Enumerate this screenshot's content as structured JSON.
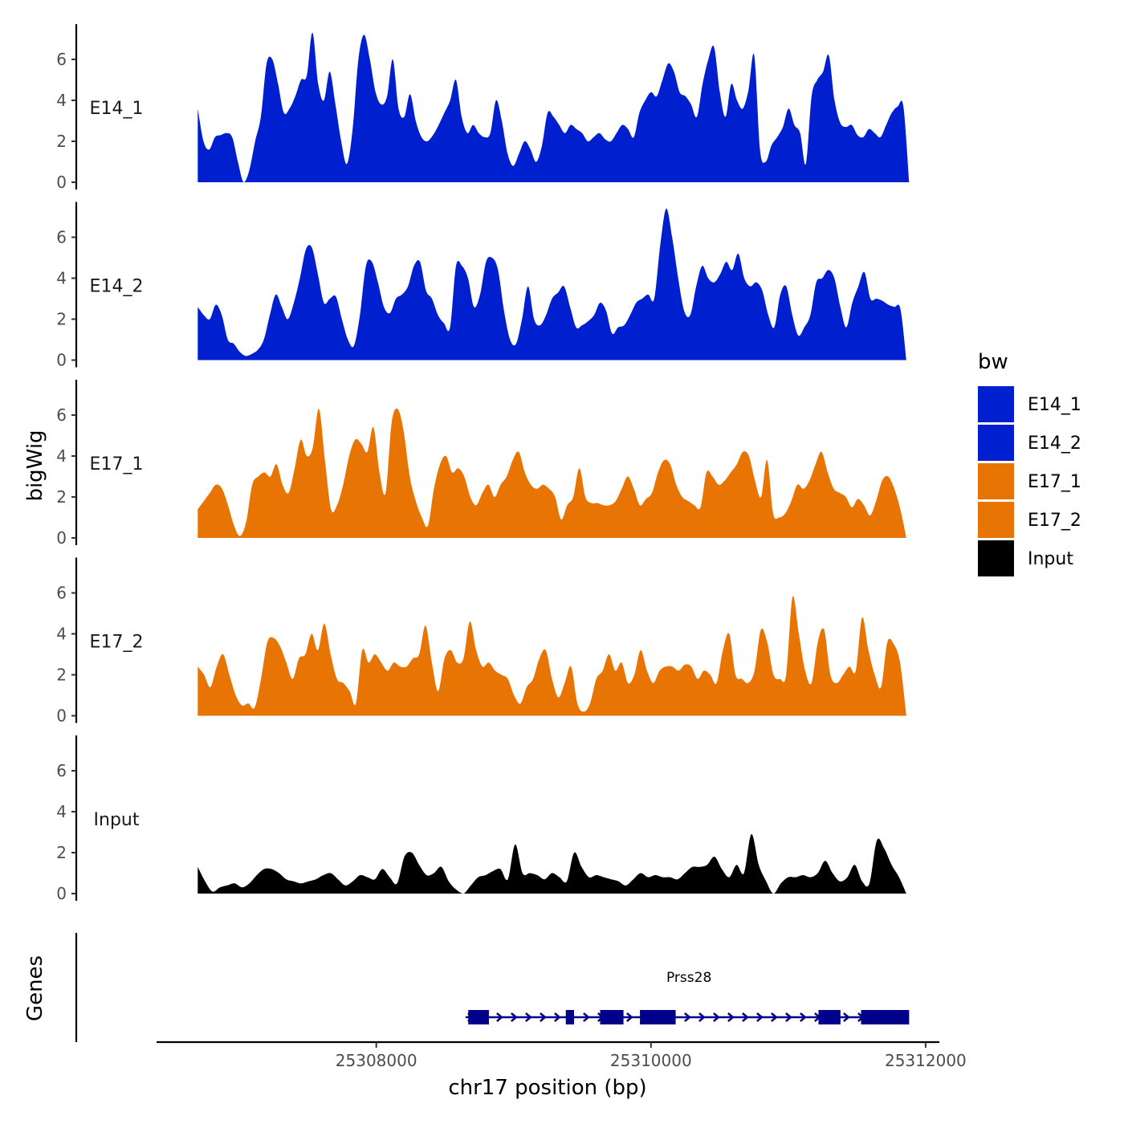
{
  "chart_data": {
    "type": "area",
    "ylabel": "bigWig",
    "xlabel": "chr17 position (bp)",
    "ylim": [
      0,
      7.6
    ],
    "yticks": [
      0,
      2,
      4,
      6
    ],
    "xlim": [
      25306400,
      25312100
    ],
    "xticks": [
      25308000,
      25310000,
      25312000
    ],
    "xtick_labels": [
      "25308000",
      "25310000",
      "25312000"
    ],
    "series": [
      {
        "name": "E14_1",
        "label": "E14_1",
        "color": "#0020D0",
        "x_start": 25306700,
        "x_end": 25311880,
        "values": [
          3.6,
          2.0,
          1.6,
          2.2,
          2.3,
          2.4,
          2.2,
          1.0,
          0.0,
          0.6,
          2.0,
          3.2,
          5.8,
          6.0,
          4.8,
          3.4,
          3.6,
          4.2,
          5.0,
          5.2,
          7.3,
          4.8,
          4.0,
          5.4,
          3.8,
          2.0,
          0.9,
          2.6,
          6.0,
          7.2,
          6.0,
          4.4,
          3.8,
          4.2,
          6.0,
          3.6,
          3.2,
          4.3,
          3.0,
          2.2,
          2.0,
          2.3,
          2.8,
          3.4,
          4.0,
          5.0,
          3.2,
          2.4,
          2.8,
          2.4,
          2.2,
          2.4,
          4.0,
          3.0,
          1.4,
          0.8,
          1.4,
          2.0,
          1.6,
          1.0,
          1.8,
          3.4,
          3.2,
          2.8,
          2.4,
          2.8,
          2.6,
          2.4,
          2.0,
          2.2,
          2.4,
          2.1,
          2.0,
          2.4,
          2.8,
          2.6,
          2.2,
          3.4,
          4.0,
          4.4,
          4.2,
          5.0,
          5.8,
          5.4,
          4.4,
          4.2,
          3.8,
          3.2,
          4.8,
          6.0,
          6.6,
          4.4,
          3.2,
          4.8,
          4.0,
          3.6,
          4.5,
          6.2,
          1.6,
          1.0,
          1.8,
          2.2,
          2.7,
          3.6,
          2.8,
          2.4,
          0.9,
          4.2,
          5.0,
          5.4,
          6.2,
          4.0,
          2.9,
          2.7,
          2.8,
          2.3,
          2.2,
          2.6,
          2.4,
          2.2,
          2.8,
          3.4,
          3.7,
          3.7,
          0.0
        ]
      },
      {
        "name": "E14_2",
        "label": "E14_2",
        "color": "#0020D0",
        "x_start": 25306700,
        "x_end": 25311860,
        "values": [
          2.6,
          2.2,
          2.0,
          2.7,
          2.2,
          1.0,
          0.8,
          0.4,
          0.2,
          0.3,
          0.5,
          1.0,
          2.2,
          3.2,
          2.6,
          2.0,
          2.8,
          4.0,
          5.4,
          5.5,
          4.2,
          2.8,
          3.0,
          3.1,
          2.0,
          1.0,
          0.7,
          2.2,
          4.6,
          4.8,
          3.8,
          2.6,
          2.3,
          3.0,
          3.2,
          3.6,
          4.6,
          4.8,
          3.4,
          3.0,
          2.2,
          1.8,
          1.6,
          4.6,
          4.6,
          4.0,
          2.6,
          3.2,
          4.8,
          5.0,
          4.4,
          2.4,
          1.0,
          0.8,
          2.0,
          3.6,
          2.0,
          1.7,
          2.2,
          3.0,
          3.3,
          3.6,
          2.6,
          1.6,
          1.7,
          1.9,
          2.2,
          2.8,
          2.4,
          1.3,
          1.6,
          1.7,
          2.2,
          2.8,
          3.0,
          3.2,
          3.0,
          5.6,
          7.4,
          6.0,
          4.0,
          2.4,
          2.2,
          3.6,
          4.6,
          4.0,
          3.8,
          4.2,
          4.8,
          4.4,
          5.2,
          4.0,
          3.6,
          3.8,
          3.4,
          2.2,
          1.6,
          3.2,
          3.6,
          2.2,
          1.2,
          1.6,
          2.2,
          3.8,
          4.0,
          4.4,
          4.0,
          2.6,
          1.6,
          2.8,
          3.6,
          4.3,
          3.0,
          3.0,
          2.9,
          2.7,
          2.6,
          2.5,
          0.0
        ]
      },
      {
        "name": "E17_1",
        "label": "E17_1",
        "color": "#E87503",
        "x_start": 25306700,
        "x_end": 25311860,
        "values": [
          1.4,
          1.8,
          2.2,
          2.6,
          2.4,
          1.6,
          0.6,
          0.1,
          0.8,
          2.6,
          3.0,
          3.2,
          3.0,
          3.6,
          2.6,
          2.2,
          3.4,
          4.8,
          4.0,
          4.4,
          6.3,
          3.8,
          1.4,
          1.6,
          2.6,
          4.0,
          4.8,
          4.6,
          4.2,
          5.4,
          3.2,
          2.2,
          5.6,
          6.3,
          5.2,
          3.0,
          1.8,
          1.0,
          0.6,
          2.4,
          3.6,
          4.0,
          3.2,
          3.4,
          3.0,
          2.0,
          1.6,
          2.2,
          2.6,
          2.0,
          2.6,
          3.0,
          3.8,
          4.2,
          3.2,
          2.6,
          2.4,
          2.6,
          2.4,
          2.0,
          0.9,
          1.6,
          2.0,
          3.4,
          2.0,
          1.7,
          1.7,
          1.6,
          1.6,
          1.8,
          2.4,
          3.0,
          2.4,
          1.6,
          1.9,
          2.2,
          3.2,
          3.8,
          3.6,
          2.6,
          2.0,
          1.8,
          1.6,
          1.5,
          3.2,
          3.0,
          2.6,
          2.8,
          3.2,
          3.6,
          4.2,
          4.0,
          2.8,
          2.0,
          3.8,
          1.2,
          1.0,
          1.2,
          1.8,
          2.6,
          2.4,
          2.8,
          3.6,
          4.2,
          3.2,
          2.4,
          2.2,
          2.0,
          1.5,
          1.9,
          1.6,
          1.1,
          1.8,
          2.8,
          3.0,
          2.4,
          1.4,
          0.0
        ]
      },
      {
        "name": "E17_2",
        "label": "E17_2",
        "color": "#E87503",
        "x_start": 25306700,
        "x_end": 25311860,
        "values": [
          2.4,
          2.0,
          1.4,
          2.4,
          3.0,
          2.0,
          1.0,
          0.5,
          0.6,
          0.4,
          1.8,
          3.6,
          3.8,
          3.4,
          2.6,
          1.8,
          2.8,
          3.0,
          4.0,
          3.2,
          4.5,
          3.0,
          1.8,
          1.6,
          1.2,
          0.6,
          3.2,
          2.6,
          3.0,
          2.6,
          2.2,
          2.6,
          2.4,
          2.4,
          2.8,
          3.0,
          4.4,
          2.6,
          1.2,
          2.8,
          3.2,
          2.6,
          2.8,
          4.6,
          3.2,
          2.4,
          2.6,
          2.2,
          2.0,
          1.8,
          1.0,
          0.6,
          1.4,
          1.8,
          2.8,
          3.2,
          1.8,
          0.9,
          1.6,
          2.4,
          0.6,
          0.2,
          0.6,
          1.8,
          2.2,
          3.0,
          2.2,
          2.6,
          1.6,
          2.0,
          3.2,
          2.2,
          1.6,
          2.2,
          2.4,
          2.4,
          2.2,
          2.5,
          2.4,
          1.8,
          2.2,
          2.0,
          1.6,
          3.2,
          4.0,
          2.0,
          1.8,
          1.6,
          2.2,
          4.2,
          3.6,
          2.0,
          1.8,
          2.0,
          5.8,
          4.0,
          2.2,
          1.6,
          3.6,
          4.2,
          2.0,
          1.6,
          2.0,
          2.4,
          2.2,
          4.8,
          3.2,
          2.0,
          1.4,
          3.6,
          3.5,
          2.6,
          0.0
        ]
      },
      {
        "name": "Input",
        "label": "Input",
        "color": "#000000",
        "x_start": 25306700,
        "x_end": 25311860,
        "values": [
          1.3,
          0.6,
          0.1,
          0.3,
          0.4,
          0.5,
          0.3,
          0.5,
          0.9,
          1.2,
          1.2,
          1.0,
          0.7,
          0.6,
          0.5,
          0.6,
          0.7,
          0.9,
          1.0,
          0.7,
          0.4,
          0.6,
          0.9,
          0.8,
          0.7,
          1.2,
          0.8,
          0.5,
          1.8,
          2.0,
          1.4,
          0.9,
          1.0,
          1.3,
          0.6,
          0.2,
          0.0,
          0.4,
          0.8,
          0.9,
          1.1,
          1.2,
          0.7,
          2.4,
          1.0,
          1.0,
          0.9,
          0.7,
          1.0,
          0.8,
          0.6,
          2.0,
          1.3,
          0.8,
          0.9,
          0.8,
          0.7,
          0.6,
          0.4,
          0.7,
          1.0,
          0.8,
          0.9,
          0.8,
          0.8,
          0.7,
          1.0,
          1.3,
          1.3,
          1.4,
          1.8,
          1.2,
          0.8,
          1.4,
          1.0,
          2.9,
          1.4,
          0.6,
          0.0,
          0.5,
          0.8,
          0.8,
          0.9,
          0.8,
          1.0,
          1.6,
          1.0,
          0.6,
          0.8,
          1.4,
          0.6,
          0.5,
          2.6,
          2.2,
          1.4,
          0.8,
          0.0
        ]
      }
    ],
    "gene_track": {
      "title": "Genes",
      "gene_name": "Prss28",
      "strand": "+",
      "color": "#00008B",
      "start": 25308650,
      "end": 25311880,
      "exons": [
        [
          25308670,
          25308820
        ],
        [
          25309380,
          25309440
        ],
        [
          25309630,
          25309800
        ],
        [
          25309920,
          25310180
        ],
        [
          25311220,
          25311380
        ],
        [
          25311530,
          25311880
        ]
      ]
    },
    "legend": {
      "title": "bw",
      "position": "right",
      "entries": [
        {
          "label": "E14_1",
          "color": "#0020D0"
        },
        {
          "label": "E14_2",
          "color": "#0020D0"
        },
        {
          "label": "E17_1",
          "color": "#E87503"
        },
        {
          "label": "E17_2",
          "color": "#E87503"
        },
        {
          "label": "Input",
          "color": "#000000"
        }
      ]
    }
  }
}
